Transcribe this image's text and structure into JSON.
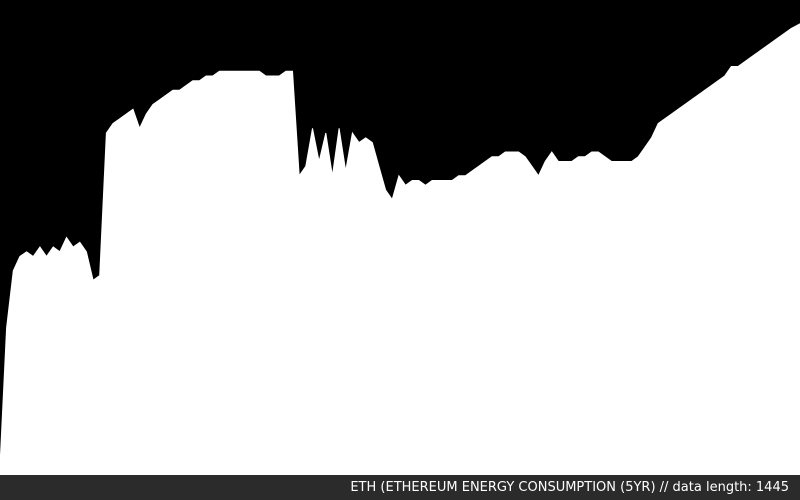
{
  "caption": "ETH (ETHEREUM ENERGY CONSUMPTION (5YR) // data length: 1445",
  "colors": {
    "background": "#000000",
    "fill": "#ffffff",
    "caption_bar": "#2b2b2b",
    "caption_text": "#ffffff"
  },
  "chart_data": {
    "type": "area",
    "title": "ETH (ETHEREUM ENERGY CONSUMPTION (5YR)",
    "data_length": 1445,
    "xlabel": "",
    "ylabel": "",
    "axes_visible": false,
    "grid": false,
    "ylim": [
      0,
      1
    ],
    "series": [
      {
        "x": [
          0,
          12,
          24,
          36,
          48,
          60,
          72,
          84,
          96,
          108,
          120,
          132,
          144,
          156,
          168,
          180,
          192,
          204,
          216,
          228,
          240,
          252,
          264,
          276,
          288,
          300,
          312,
          324,
          336,
          348,
          360,
          372,
          384,
          396,
          408,
          420,
          432,
          444,
          456,
          468,
          480,
          492,
          504,
          516,
          528,
          540,
          552,
          564,
          576,
          588,
          600,
          612,
          624,
          636,
          648,
          660,
          672,
          684,
          696,
          708,
          720,
          732,
          744,
          756,
          768,
          780,
          792,
          804,
          816,
          828,
          840,
          852,
          864,
          876,
          888,
          900,
          912,
          924,
          936,
          948,
          960,
          972,
          984,
          996,
          1008,
          1020,
          1032,
          1044,
          1056,
          1068,
          1080,
          1092,
          1104,
          1116,
          1128,
          1140,
          1152,
          1164,
          1176,
          1188,
          1200,
          1212,
          1224,
          1236,
          1248,
          1260,
          1272,
          1284,
          1296,
          1308,
          1320,
          1332,
          1344,
          1356,
          1368,
          1380,
          1392,
          1404,
          1416,
          1428,
          1444
        ],
        "values": [
          0.02,
          0.31,
          0.43,
          0.46,
          0.47,
          0.46,
          0.48,
          0.46,
          0.48,
          0.47,
          0.5,
          0.48,
          0.49,
          0.47,
          0.41,
          0.42,
          0.72,
          0.74,
          0.75,
          0.76,
          0.77,
          0.73,
          0.76,
          0.78,
          0.79,
          0.8,
          0.81,
          0.81,
          0.82,
          0.83,
          0.83,
          0.84,
          0.84,
          0.85,
          0.85,
          0.85,
          0.85,
          0.85,
          0.85,
          0.85,
          0.84,
          0.84,
          0.84,
          0.85,
          0.85,
          0.63,
          0.65,
          0.73,
          0.66,
          0.72,
          0.63,
          0.73,
          0.64,
          0.72,
          0.7,
          0.71,
          0.7,
          0.65,
          0.6,
          0.58,
          0.63,
          0.61,
          0.62,
          0.62,
          0.61,
          0.62,
          0.62,
          0.62,
          0.62,
          0.63,
          0.63,
          0.64,
          0.65,
          0.66,
          0.67,
          0.67,
          0.68,
          0.68,
          0.68,
          0.67,
          0.65,
          0.63,
          0.66,
          0.68,
          0.66,
          0.66,
          0.66,
          0.67,
          0.67,
          0.68,
          0.68,
          0.67,
          0.66,
          0.66,
          0.66,
          0.66,
          0.67,
          0.69,
          0.71,
          0.74,
          0.75,
          0.76,
          0.77,
          0.78,
          0.79,
          0.8,
          0.81,
          0.82,
          0.83,
          0.84,
          0.86,
          0.86,
          0.87,
          0.88,
          0.89,
          0.9,
          0.91,
          0.92,
          0.93,
          0.94,
          0.95
        ]
      }
    ]
  }
}
